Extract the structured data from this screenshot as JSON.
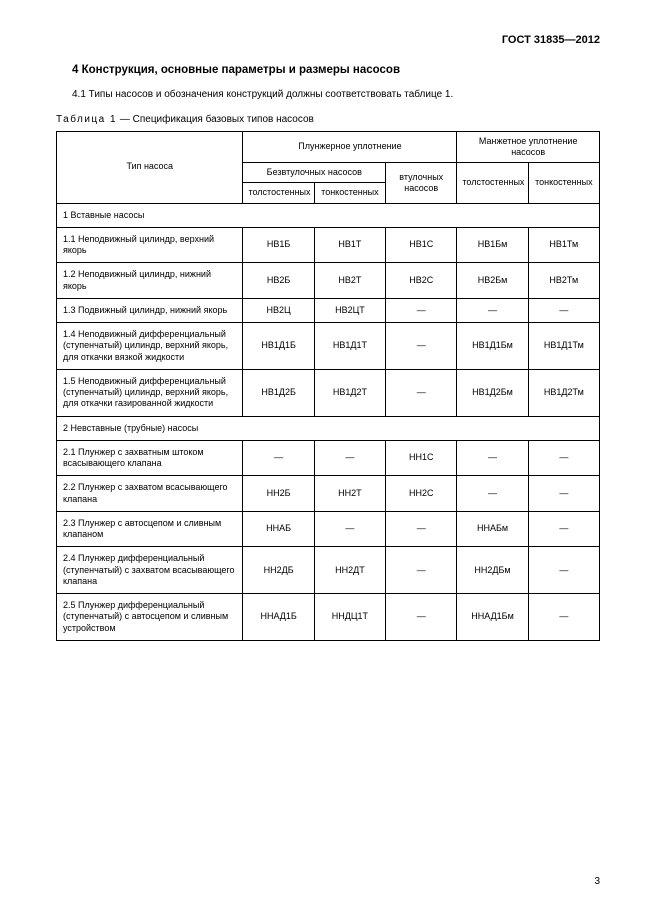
{
  "doc_id": "ГОСТ 31835—2012",
  "section_heading": "4 Конструкция, основные параметры и размеры насосов",
  "section_text": "4.1 Типы насосов и обозначения конструкций должны соответствовать таблице 1.",
  "table_caption_spaced": "Таблица 1",
  "table_caption_rest": " — Спецификация базовых типов насосов",
  "page_number": "3",
  "head": {
    "type": "Тип насоса",
    "plunger": "Плунжерное уплотнение",
    "cup": "Манжетное уплотнение насосов",
    "no_liner": "Безвтулочных насосов",
    "liner": "втулочных насосов",
    "thick": "толстостенных",
    "thin": "тонкостенных"
  },
  "dash": "—",
  "rows": [
    {
      "section": "1 Вставные насосы"
    },
    {
      "label": "1.1 Неподвижный цилиндр, верхний якорь",
      "c": [
        "НВ1Б",
        "НВ1Т",
        "НВ1С",
        "НВ1Бм",
        "НВ1Тм"
      ]
    },
    {
      "label": "1.2 Неподвижный цилиндр, нижний якорь",
      "c": [
        "НВ2Б",
        "НВ2Т",
        "НВ2С",
        "НВ2Бм",
        "НВ2Тм"
      ]
    },
    {
      "label": "1.3 Подвижный цилиндр, нижний якорь",
      "c": [
        "НВ2Ц",
        "НВ2ЦТ",
        "—",
        "—",
        "—"
      ]
    },
    {
      "label": "1.4 Неподвижный дифференциальный (ступенчатый) цилиндр, верхний якорь, для откачки вязкой жидкости",
      "c": [
        "НВ1Д1Б",
        "НВ1Д1Т",
        "—",
        "НВ1Д1Бм",
        "НВ1Д1Тм"
      ]
    },
    {
      "label": "1.5 Неподвижный дифференциальный (ступенчатый) цилиндр, верхний якорь, для откачки газированной жидкости",
      "c": [
        "НВ1Д2Б",
        "НВ1Д2Т",
        "—",
        "НВ1Д2Бм",
        "НВ1Д2Тм"
      ]
    },
    {
      "section": "2 Невставные (трубные) насосы"
    },
    {
      "label": "2.1 Плунжер с захватным штоком всасывающего клапана",
      "c": [
        "—",
        "—",
        "НН1С",
        "—",
        "—"
      ]
    },
    {
      "label": "2.2 Плунжер с захватом всасывающего клапана",
      "c": [
        "НН2Б",
        "НН2Т",
        "НН2С",
        "—",
        "—"
      ]
    },
    {
      "label": "2.3 Плунжер с автосцепом и сливным клапаном",
      "c": [
        "ННАБ",
        "—",
        "—",
        "ННАБм",
        "—"
      ]
    },
    {
      "label": "2.4 Плунжер дифференциальный (ступенчатый) с захватом всасывающего клапана",
      "c": [
        "НН2ДБ",
        "НН2ДТ",
        "—",
        "НН2ДБм",
        "—"
      ]
    },
    {
      "label": "2.5 Плунжер дифференциальный (ступенчатый) с автосцепом и сливным устройством",
      "c": [
        "ННАД1Б",
        "ННДЦ1Т",
        "—",
        "ННАД1Бм",
        "—"
      ]
    }
  ]
}
